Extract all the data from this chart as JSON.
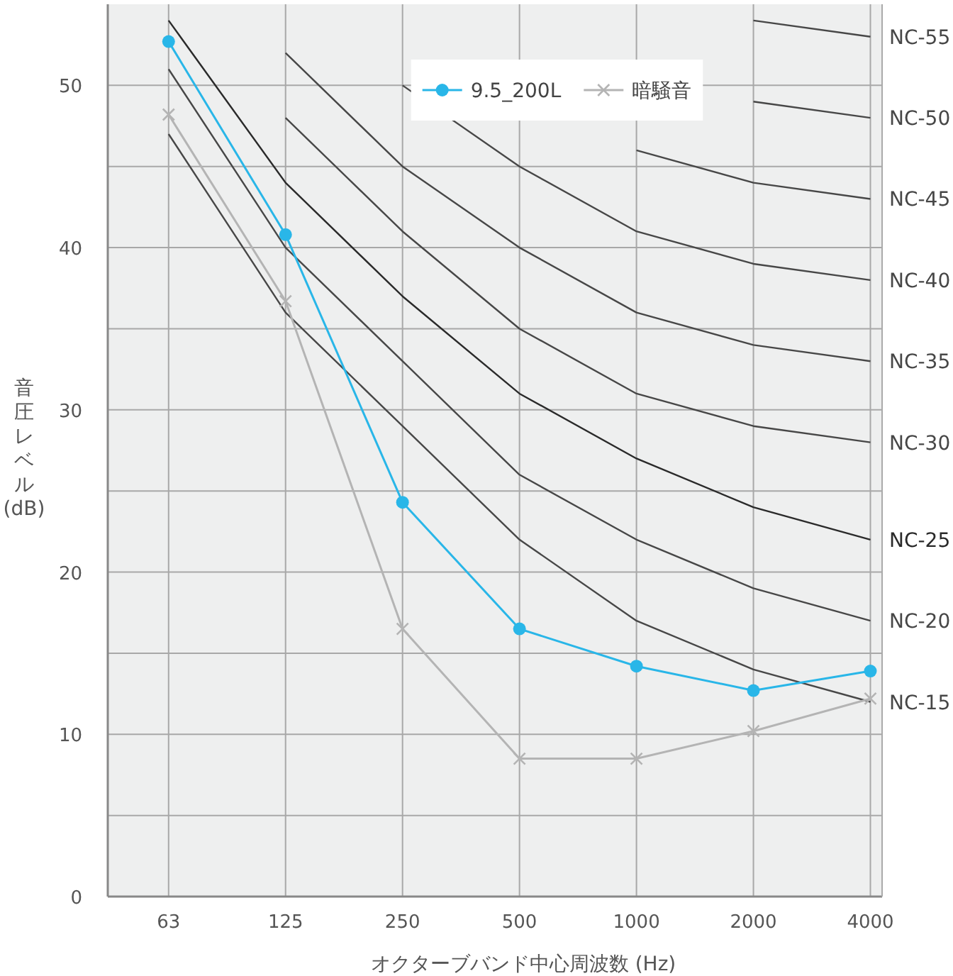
{
  "chart_data": {
    "type": "line",
    "xlabel": "オクターブバンド中心周波数 (Hz)",
    "ylabel": "音圧レベル(dB)",
    "categories": [
      "63",
      "125",
      "250",
      "500",
      "1000",
      "2000",
      "4000"
    ],
    "ylim": [
      0,
      55
    ],
    "yticks": [
      0,
      {
        "value": 5,
        "label": null
      },
      10,
      {
        "value": 15,
        "label": null
      },
      20,
      {
        "value": 25,
        "label": null
      },
      30,
      {
        "value": 35,
        "label": null
      },
      40,
      {
        "value": 45,
        "label": null
      },
      50
    ],
    "grid": true,
    "legend": "top right",
    "series": [
      {
        "name": "NC-55",
        "color": "#474747",
        "marker": "none",
        "values": [
          null,
          null,
          null,
          null,
          null,
          54,
          53
        ]
      },
      {
        "name": "NC-50",
        "color": "#474747",
        "marker": "none",
        "values": [
          null,
          null,
          null,
          null,
          null,
          49,
          48
        ]
      },
      {
        "name": "NC-45",
        "color": "#474747",
        "marker": "none",
        "values": [
          null,
          null,
          null,
          null,
          46,
          44,
          43
        ]
      },
      {
        "name": "NC-40",
        "color": "#474747",
        "marker": "none",
        "values": [
          null,
          null,
          50,
          45,
          41,
          39,
          38
        ]
      },
      {
        "name": "NC-35",
        "color": "#474747",
        "marker": "none",
        "values": [
          null,
          52,
          45,
          40,
          36,
          34,
          33
        ]
      },
      {
        "name": "NC-30",
        "color": "#474747",
        "marker": "none",
        "values": [
          null,
          48,
          41,
          35,
          31,
          29,
          28
        ]
      },
      {
        "name": "NC-25",
        "color": "#2a2a2a",
        "marker": "none",
        "values": [
          54,
          44,
          37,
          31,
          27,
          24,
          22
        ]
      },
      {
        "name": "NC-20",
        "color": "#474747",
        "marker": "none",
        "values": [
          51,
          40,
          33,
          26,
          22,
          19,
          17
        ]
      },
      {
        "name": "NC-15",
        "color": "#474747",
        "marker": "none",
        "values": [
          47,
          36,
          29,
          22,
          17,
          14,
          12
        ]
      },
      {
        "name": "9.5_200L",
        "color": "#29b6e8",
        "marker": "circle",
        "values": [
          52.7,
          40.8,
          24.3,
          16.5,
          14.2,
          12.7,
          13.9
        ]
      },
      {
        "name": "暗騒音",
        "color": "#b4b4b4",
        "marker": "cross",
        "values": [
          48.2,
          36.7,
          16.5,
          8.5,
          8.5,
          10.2,
          12.2
        ]
      }
    ]
  }
}
